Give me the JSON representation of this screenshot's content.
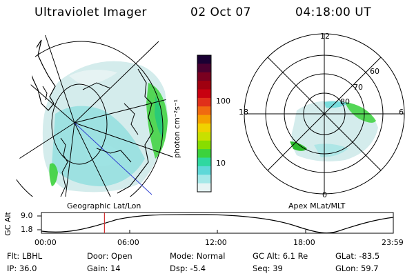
{
  "header": {
    "instrument": "Ultraviolet Imager",
    "date": "02 Oct 07",
    "time": "04:18:00 UT"
  },
  "left_map": {
    "label": "Geographic Lat/Lon"
  },
  "right_map": {
    "label": "Apex MLat/MLT",
    "mlt_labels": [
      "12",
      "18",
      "6",
      "0"
    ],
    "lat_labels": [
      "60",
      "70",
      "80"
    ]
  },
  "colorbar": {
    "unit_label": "photon cm⁻²s⁻¹",
    "ticks": [
      "100",
      "10"
    ],
    "colors": [
      "#1a0033",
      "#4a0030",
      "#7a0020",
      "#a00010",
      "#c80010",
      "#e0301a",
      "#f06a10",
      "#f5a000",
      "#f0d200",
      "#c8e000",
      "#88dd00",
      "#3cd23c",
      "#2fd8a0",
      "#5fd8d8",
      "#a5e8e8",
      "#e6f4f4"
    ]
  },
  "orbit": {
    "y_label": "GC Alt",
    "y_ticks": [
      "9.0",
      "1.8"
    ],
    "x_ticks": [
      "00:00",
      "06:00",
      "12:00",
      "18:00",
      "23:59"
    ],
    "current_time_hours": 4.3
  },
  "info": {
    "filter": "Flt: LBHL",
    "door": "Door: Open",
    "mode": "Mode: Normal",
    "gc_alt": "GC Alt: 6.1 Re",
    "glat": "GLat: -83.5",
    "ip": "IP: 36.0",
    "gain": "Gain: 14",
    "dsp": "Dsp:    -5.4",
    "seq": "Seq: 39",
    "glon": "GLon:  59.7"
  }
}
